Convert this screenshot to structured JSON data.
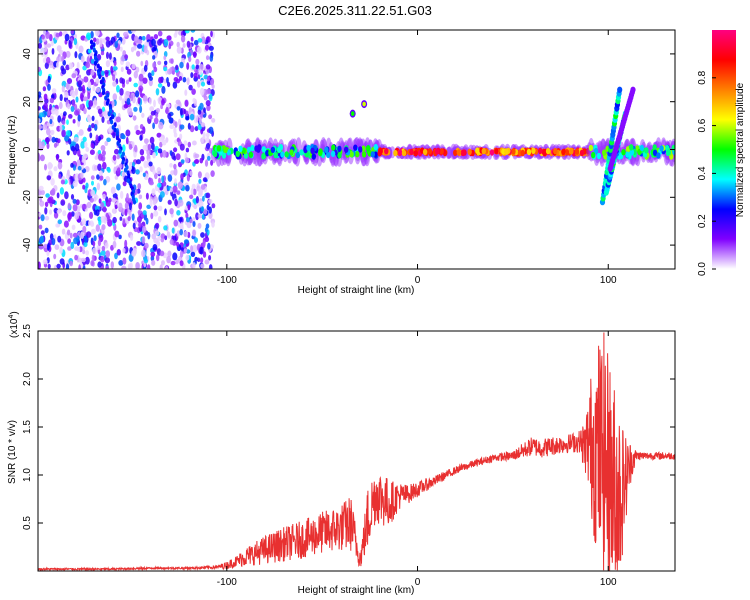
{
  "title": "C2E6.2025.311.22.51.G03",
  "chart_data": [
    {
      "type": "heatmap",
      "name": "spectrogram",
      "xlabel": "Height of straight line (km)",
      "ylabel": "Frequency (Hz)",
      "xlim": [
        -199,
        135
      ],
      "ylim": [
        -50,
        50
      ],
      "xticks": [
        -100,
        0,
        100
      ],
      "xtick_labels": [
        "-100",
        "0",
        "100"
      ],
      "yticks": [
        -40,
        -20,
        0,
        20,
        40
      ],
      "ytick_labels": [
        "-40",
        "-20",
        "0",
        "20",
        "40"
      ],
      "colorbar": {
        "label": "Normalized spectral amplitude",
        "range": [
          0,
          1
        ],
        "ticks": [
          0,
          0.2,
          0.4,
          0.6,
          0.8
        ],
        "tick_labels": [
          "0.0",
          "0.2",
          "0.4",
          "0.6",
          "0.8"
        ],
        "colors": [
          "#ffffff",
          "#8000ff",
          "#0000ff",
          "#00ffff",
          "#00ff00",
          "#ffff00",
          "#ff8000",
          "#ff0000",
          "#ff0080"
        ]
      },
      "features": {
        "noise_region_x": [
          -199,
          -107
        ],
        "streak_start": [
          -171,
          45
        ],
        "streak_end": [
          -148,
          -22
        ],
        "band_center_hz": -1,
        "band_segments": [
          {
            "x": [
              -107,
              -20
            ],
            "amplitude": 0.45
          },
          {
            "x": [
              -20,
              90
            ],
            "amplitude": 0.9
          },
          {
            "x": [
              90,
              135
            ],
            "amplitude": 0.5
          }
        ],
        "blobs": [
          {
            "x": -34,
            "y": 15,
            "amplitude": 0.5
          },
          {
            "x": -28,
            "y": 19,
            "amplitude": 0.6
          }
        ],
        "burst_x": [
          95,
          112
        ]
      }
    },
    {
      "type": "line",
      "name": "snr",
      "xlabel": "Height of straight line (km)",
      "ylabel": "SNR (10 * v/v)",
      "xlim": [
        -199,
        135
      ],
      "ylim": [
        0,
        2.5
      ],
      "multiplier_label": "(x10",
      "multiplier_exp": "4",
      "multiplier_close": ")",
      "xticks": [
        -100,
        0,
        100
      ],
      "xtick_labels": [
        "-100",
        "0",
        "100"
      ],
      "yticks": [
        0.5,
        1.0,
        1.5,
        2.0,
        2.5
      ],
      "ytick_labels": [
        "0.5",
        "1.0",
        "1.5",
        "2.0",
        "2.5"
      ],
      "color": "#e83030",
      "series": [
        {
          "name": "SNR",
          "x": [
            -199,
            -180,
            -160,
            -140,
            -120,
            -105,
            -100,
            -95,
            -90,
            -80,
            -70,
            -60,
            -50,
            -40,
            -35,
            -30,
            -26,
            -22,
            -18,
            -15,
            -10,
            -5,
            0,
            10,
            20,
            30,
            40,
            50,
            55,
            60,
            65,
            70,
            75,
            80,
            85,
            88,
            90,
            92,
            95,
            98,
            100,
            103,
            106,
            108,
            110,
            112,
            115,
            120,
            125,
            135
          ],
          "y": [
            0.02,
            0.02,
            0.02,
            0.03,
            0.03,
            0.04,
            0.06,
            0.1,
            0.15,
            0.22,
            0.28,
            0.33,
            0.4,
            0.45,
            0.5,
            0.12,
            0.55,
            0.8,
            0.75,
            0.7,
            0.78,
            0.8,
            0.85,
            0.95,
            1.05,
            1.12,
            1.18,
            1.2,
            1.25,
            1.3,
            1.28,
            1.3,
            1.32,
            1.33,
            1.35,
            1.3,
            1.35,
            1.3,
            1.25,
            1.2,
            1.0,
            0.8,
            0.8,
            0.9,
            1.0,
            1.15,
            1.2,
            1.2,
            1.2,
            1.2
          ],
          "noise_amplitude": [
            0.01,
            0.01,
            0.01,
            0.01,
            0.01,
            0.02,
            0.04,
            0.06,
            0.1,
            0.15,
            0.18,
            0.2,
            0.22,
            0.25,
            0.3,
            0.1,
            0.35,
            0.3,
            0.3,
            0.25,
            0.15,
            0.1,
            0.08,
            0.05,
            0.04,
            0.04,
            0.04,
            0.05,
            0.08,
            0.1,
            0.1,
            0.1,
            0.1,
            0.1,
            0.12,
            0.3,
            0.6,
            0.9,
            1.2,
            1.3,
            1.3,
            1.2,
            1.0,
            0.6,
            0.4,
            0.2,
            0.05,
            0.04,
            0.04,
            0.04
          ]
        }
      ]
    }
  ]
}
